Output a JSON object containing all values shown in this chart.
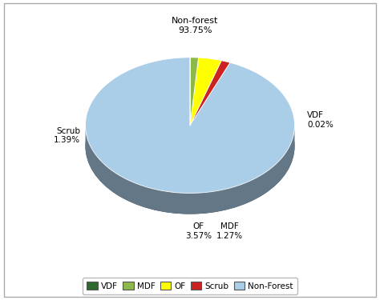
{
  "labels": [
    "VDF",
    "MDF",
    "OF",
    "Scrub",
    "Non-Forest"
  ],
  "values": [
    0.02,
    1.27,
    3.57,
    1.39,
    93.75
  ],
  "colors": [
    "#2d6a2d",
    "#8db84a",
    "#ffff00",
    "#cc2222",
    "#aacde8"
  ],
  "shadow_color": "#2e3f52",
  "background_color": "#ffffff",
  "label_texts": {
    "Non-Forest": "Non-forest\n93.75%",
    "VDF": "VDF\n0.02%",
    "MDF": "MDF\n1.27%",
    "OF": "OF\n3.57%",
    "Scrub": "Scrub\n1.39%"
  },
  "legend_labels": [
    "VDF",
    "MDF",
    "OF",
    "Scrub",
    "Non-Forest"
  ]
}
